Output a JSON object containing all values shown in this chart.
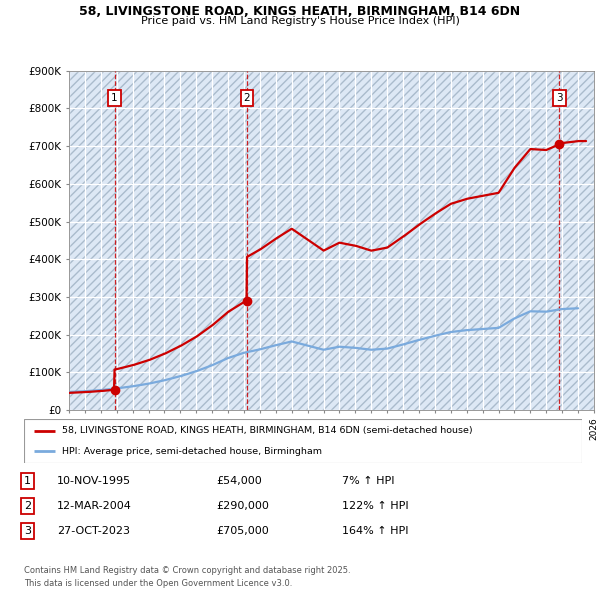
{
  "title1": "58, LIVINGSTONE ROAD, KINGS HEATH, BIRMINGHAM, B14 6DN",
  "title2": "Price paid vs. HM Land Registry's House Price Index (HPI)",
  "xlim_start": 1993,
  "xlim_end": 2026,
  "ylim_min": 0,
  "ylim_max": 900000,
  "yticks": [
    0,
    100000,
    200000,
    300000,
    400000,
    500000,
    600000,
    700000,
    800000,
    900000
  ],
  "ytick_labels": [
    "£0",
    "£100K",
    "£200K",
    "£300K",
    "£400K",
    "£500K",
    "£600K",
    "£700K",
    "£800K",
    "£900K"
  ],
  "sale_dates": [
    1995.86,
    2004.19,
    2023.82
  ],
  "sale_prices": [
    54000,
    290000,
    705000
  ],
  "sale_labels": [
    "1",
    "2",
    "3"
  ],
  "hpi_color": "#7aaadd",
  "price_color": "#cc0000",
  "legend_label_price": "58, LIVINGSTONE ROAD, KINGS HEATH, BIRMINGHAM, B14 6DN (semi-detached house)",
  "legend_label_hpi": "HPI: Average price, semi-detached house, Birmingham",
  "table_entries": [
    {
      "num": "1",
      "date": "10-NOV-1995",
      "price": "£54,000",
      "change": "7% ↑ HPI"
    },
    {
      "num": "2",
      "date": "12-MAR-2004",
      "price": "£290,000",
      "change": "122% ↑ HPI"
    },
    {
      "num": "3",
      "date": "27-OCT-2023",
      "price": "£705,000",
      "change": "164% ↑ HPI"
    }
  ],
  "footnote": "Contains HM Land Registry data © Crown copyright and database right 2025.\nThis data is licensed under the Open Government Licence v3.0.",
  "hpi_years": [
    1993,
    1994,
    1995,
    1996,
    1997,
    1998,
    1999,
    2000,
    2001,
    2002,
    2003,
    2004,
    2005,
    2006,
    2007,
    2008,
    2009,
    2010,
    2011,
    2012,
    2013,
    2014,
    2015,
    2016,
    2017,
    2018,
    2019,
    2020,
    2021,
    2022,
    2023,
    2024,
    2025
  ],
  "hpi_values": [
    48000,
    50000,
    53000,
    57500,
    63000,
    70000,
    79000,
    90000,
    103000,
    119000,
    138000,
    152000,
    161000,
    172000,
    182000,
    171000,
    160000,
    168000,
    165000,
    160000,
    163000,
    174000,
    186000,
    197000,
    207000,
    212000,
    215000,
    218000,
    243000,
    262000,
    261000,
    268000,
    270000
  ]
}
